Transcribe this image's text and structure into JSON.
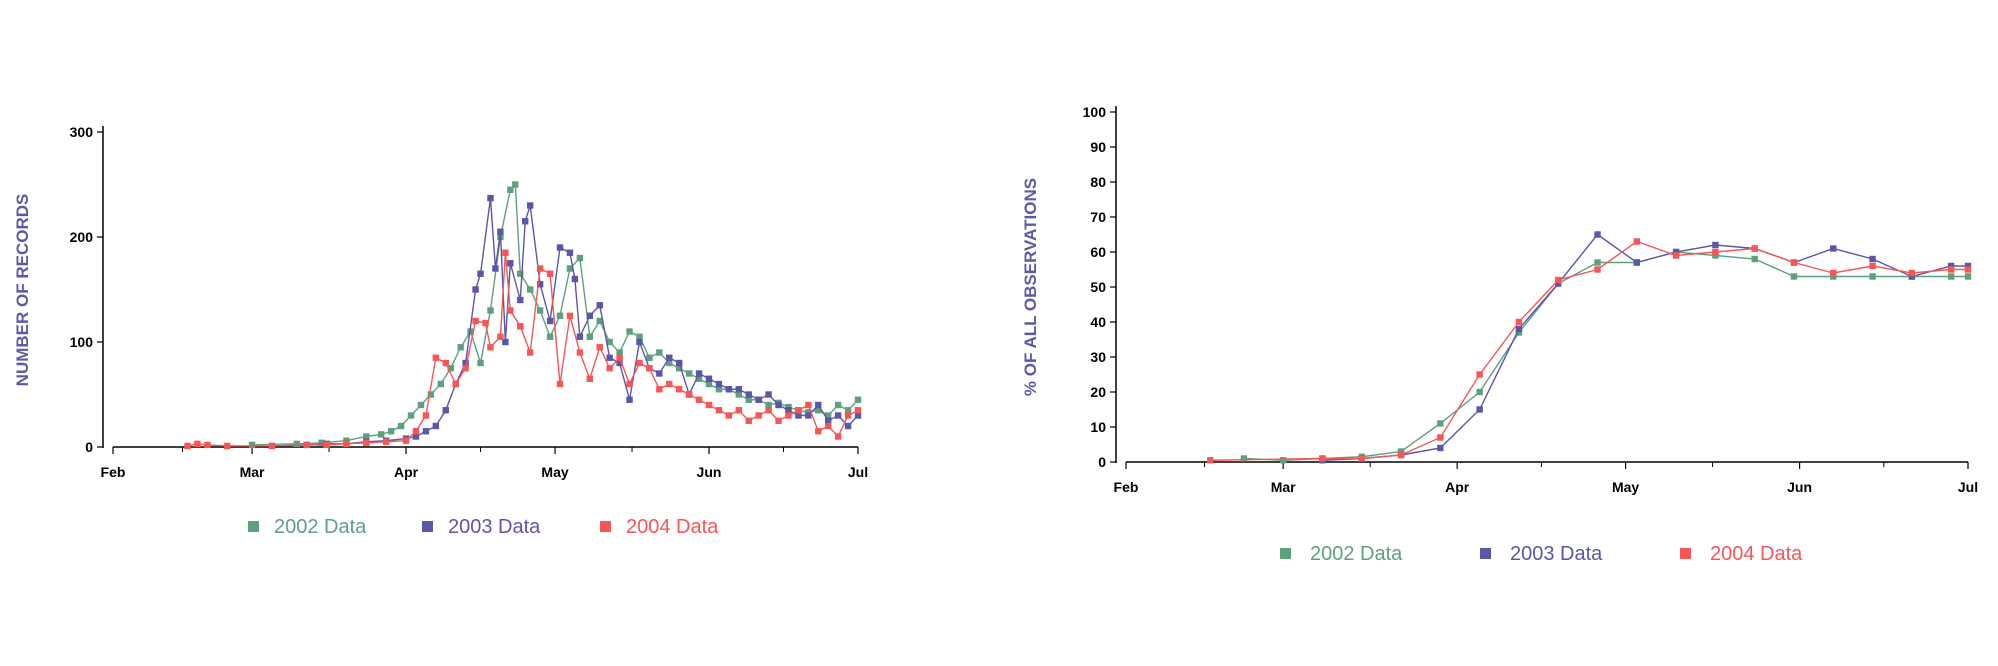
{
  "colors": {
    "series_2002": "#5ea07e",
    "series_2003": "#5a56a8",
    "series_2004": "#f55656",
    "ylabel": "#5c5aa8",
    "axis": "#000000"
  },
  "chart_data": [
    {
      "type": "line",
      "title": "",
      "xlabel": "",
      "ylabel": "NUMBER OF RECORDS",
      "x_ticks": [
        "Feb",
        "Mar",
        "Apr",
        "May",
        "Jun",
        "Jul"
      ],
      "x_range": [
        "Feb 1",
        "Jul 1"
      ],
      "y_ticks": [
        0,
        100,
        200,
        300
      ],
      "ylim": [
        0,
        300
      ],
      "legend_position": "bottom",
      "series": [
        {
          "name": "2002 Data",
          "color_key": "series_2002",
          "x": [
            "Mar 1",
            "Mar 10",
            "Mar 15",
            "Mar 20",
            "Mar 24",
            "Mar 27",
            "Mar 29",
            "Mar 31",
            "Apr 2",
            "Apr 4",
            "Apr 6",
            "Apr 8",
            "Apr 10",
            "Apr 12",
            "Apr 14",
            "Apr 16",
            "Apr 18",
            "Apr 20",
            "Apr 22",
            "Apr 23",
            "Apr 24",
            "Apr 26",
            "Apr 28",
            "Apr 30",
            "May 2",
            "May 4",
            "May 6",
            "May 8",
            "May 10",
            "May 12",
            "May 14",
            "May 16",
            "May 18",
            "May 20",
            "May 22",
            "May 24",
            "May 26",
            "May 28",
            "May 30",
            "Jun 1",
            "Jun 3",
            "Jun 5",
            "Jun 7",
            "Jun 9",
            "Jun 11",
            "Jun 13",
            "Jun 15",
            "Jun 17",
            "Jun 19",
            "Jun 21",
            "Jun 23",
            "Jun 25",
            "Jun 27",
            "Jun 29",
            "Jul 1"
          ],
          "values": [
            2,
            3,
            4,
            6,
            10,
            12,
            15,
            20,
            30,
            40,
            50,
            60,
            75,
            95,
            110,
            80,
            130,
            200,
            245,
            250,
            165,
            150,
            130,
            105,
            125,
            170,
            180,
            105,
            120,
            100,
            90,
            110,
            105,
            85,
            90,
            80,
            75,
            70,
            65,
            60,
            55,
            55,
            50,
            45,
            45,
            40,
            42,
            38,
            35,
            33,
            35,
            30,
            40,
            35,
            45
          ]
        },
        {
          "name": "2003 Data",
          "color_key": "series_2003",
          "x": [
            "Mar 5",
            "Mar 12",
            "Mar 16",
            "Mar 20",
            "Mar 24",
            "Mar 28",
            "Apr 1",
            "Apr 3",
            "Apr 5",
            "Apr 7",
            "Apr 9",
            "Apr 11",
            "Apr 13",
            "Apr 15",
            "Apr 16",
            "Apr 18",
            "Apr 19",
            "Apr 20",
            "Apr 21",
            "Apr 22",
            "Apr 24",
            "Apr 25",
            "Apr 26",
            "Apr 28",
            "Apr 30",
            "May 2",
            "May 4",
            "May 5",
            "May 6",
            "May 8",
            "May 10",
            "May 12",
            "May 14",
            "May 16",
            "May 18",
            "May 20",
            "May 22",
            "May 24",
            "May 26",
            "May 28",
            "May 30",
            "Jun 1",
            "Jun 3",
            "Jun 5",
            "Jun 7",
            "Jun 9",
            "Jun 11",
            "Jun 13",
            "Jun 15",
            "Jun 17",
            "Jun 19",
            "Jun 21",
            "Jun 23",
            "Jun 25",
            "Jun 27",
            "Jun 29",
            "Jul 1"
          ],
          "values": [
            1,
            2,
            3,
            3,
            5,
            6,
            8,
            10,
            15,
            20,
            35,
            60,
            80,
            150,
            165,
            237,
            170,
            205,
            100,
            175,
            140,
            215,
            230,
            155,
            120,
            190,
            185,
            160,
            105,
            125,
            135,
            85,
            80,
            45,
            100,
            75,
            70,
            85,
            80,
            50,
            70,
            65,
            60,
            55,
            55,
            50,
            45,
            50,
            40,
            35,
            30,
            30,
            40,
            25,
            30,
            20,
            30
          ]
        },
        {
          "name": "2004 Data",
          "color_key": "series_2004",
          "x": [
            "Feb 16",
            "Feb 18",
            "Feb 20",
            "Feb 24",
            "Mar 5",
            "Mar 12",
            "Mar 16",
            "Mar 20",
            "Mar 24",
            "Mar 28",
            "Apr 1",
            "Apr 3",
            "Apr 5",
            "Apr 7",
            "Apr 9",
            "Apr 11",
            "Apr 13",
            "Apr 15",
            "Apr 17",
            "Apr 18",
            "Apr 20",
            "Apr 21",
            "Apr 22",
            "Apr 24",
            "Apr 26",
            "Apr 28",
            "Apr 30",
            "May 2",
            "May 4",
            "May 6",
            "May 8",
            "May 10",
            "May 12",
            "May 14",
            "May 16",
            "May 18",
            "May 20",
            "May 22",
            "May 24",
            "May 26",
            "May 28",
            "May 30",
            "Jun 1",
            "Jun 3",
            "Jun 5",
            "Jun 7",
            "Jun 9",
            "Jun 11",
            "Jun 13",
            "Jun 15",
            "Jun 17",
            "Jun 19",
            "Jun 21",
            "Jun 23",
            "Jun 25",
            "Jun 27",
            "Jun 29",
            "Jul 1"
          ],
          "values": [
            1,
            3,
            2,
            1,
            1,
            2,
            2,
            3,
            4,
            5,
            6,
            15,
            30,
            85,
            80,
            60,
            75,
            120,
            118,
            95,
            105,
            185,
            130,
            115,
            90,
            170,
            165,
            60,
            125,
            90,
            65,
            95,
            75,
            85,
            60,
            80,
            75,
            55,
            60,
            55,
            50,
            45,
            40,
            35,
            30,
            35,
            25,
            30,
            35,
            25,
            30,
            35,
            40,
            15,
            20,
            10,
            30,
            35
          ]
        }
      ]
    },
    {
      "type": "line",
      "title": "",
      "xlabel": "",
      "ylabel": "% OF ALL OBSERVATIONS",
      "x_ticks": [
        "Feb",
        "Mar",
        "Apr",
        "May",
        "Jun",
        "Jul"
      ],
      "x_range": [
        "Feb 1",
        "Jul 1"
      ],
      "y_ticks": [
        0,
        10,
        20,
        30,
        40,
        50,
        60,
        70,
        80,
        90,
        100
      ],
      "ylim": [
        0,
        100
      ],
      "legend_position": "bottom",
      "series": [
        {
          "name": "2002 Data",
          "color_key": "series_2002",
          "x": [
            "Feb 22",
            "Mar 1",
            "Mar 8",
            "Mar 15",
            "Mar 22",
            "Mar 29",
            "Apr 5",
            "Apr 12",
            "Apr 19",
            "Apr 26",
            "May 3",
            "May 10",
            "May 17",
            "May 24",
            "May 31",
            "Jun 7",
            "Jun 14",
            "Jun 21",
            "Jun 28",
            "Jul 1"
          ],
          "values": [
            1,
            0.5,
            1,
            1.5,
            3,
            11,
            20,
            37,
            51,
            57,
            57,
            60,
            59,
            58,
            53,
            53,
            53,
            53,
            53,
            53
          ]
        },
        {
          "name": "2003 Data",
          "color_key": "series_2003",
          "x": [
            "Mar 8",
            "Mar 15",
            "Mar 22",
            "Mar 29",
            "Apr 5",
            "Apr 12",
            "Apr 19",
            "Apr 26",
            "May 3",
            "May 10",
            "May 17",
            "May 24",
            "May 31",
            "Jun 7",
            "Jun 14",
            "Jun 21",
            "Jun 28",
            "Jul 1"
          ],
          "values": [
            0.5,
            1,
            2,
            4,
            15,
            38,
            51,
            65,
            57,
            60,
            62,
            61,
            57,
            61,
            58,
            53,
            56,
            56
          ]
        },
        {
          "name": "2004 Data",
          "color_key": "series_2004",
          "x": [
            "Feb 16",
            "Mar 8",
            "Mar 15",
            "Mar 22",
            "Mar 29",
            "Apr 5",
            "Apr 12",
            "Apr 19",
            "Apr 26",
            "May 3",
            "May 10",
            "May 17",
            "May 24",
            "May 31",
            "Jun 7",
            "Jun 14",
            "Jun 21",
            "Jun 28",
            "Jul 1"
          ],
          "values": [
            0.5,
            1,
            1,
            2,
            7,
            25,
            40,
            52,
            55,
            63,
            59,
            60,
            61,
            57,
            54,
            56,
            54,
            55,
            55
          ]
        }
      ]
    }
  ]
}
